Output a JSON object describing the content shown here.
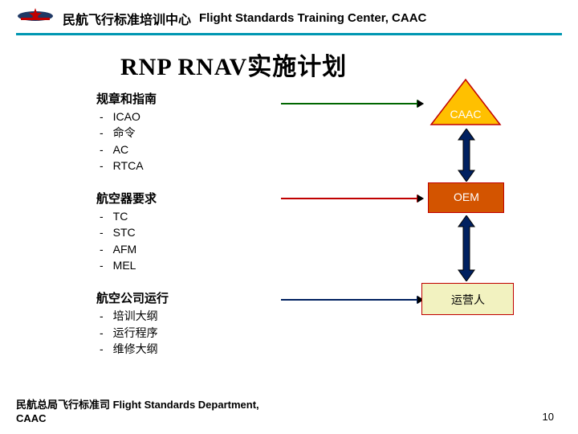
{
  "header": {
    "cn": "民航飞行标准培训中心",
    "en": "Flight Standards Training Center, CAAC",
    "line_color": "#0097B2"
  },
  "title": "RNP RNAV实施计划",
  "sections": [
    {
      "heading": "规章和指南",
      "items": [
        "ICAO",
        "命令",
        "AC",
        "RTCA"
      ],
      "arrow_color": "#006600",
      "target_label": "CAAC",
      "shape": {
        "type": "triangle",
        "fill": "#FFC000",
        "border": "#C00000",
        "label_color": "#ffffff",
        "label_bg": "none"
      }
    },
    {
      "heading": "航空器要求",
      "items": [
        "TC",
        "STC",
        "AFM",
        "MEL"
      ],
      "arrow_color": "#C00000",
      "target_label": "OEM",
      "shape": {
        "type": "rect",
        "fill": "#D35400",
        "border": "#C00000",
        "label_color": "#ffffff",
        "label_bg": "none"
      }
    },
    {
      "heading": "航空公司运行",
      "items": [
        "培训大纲",
        "运行程序",
        "维修大纲"
      ],
      "arrow_color": "#002060",
      "target_label": "运营人",
      "shape": {
        "type": "rect",
        "fill": "#F2F2C0",
        "border": "#C00000",
        "label_color": "#000000",
        "label_bg": "none"
      }
    }
  ],
  "connector": {
    "arrow_fill": "#002060",
    "arrow_border": "#000000"
  },
  "footer": {
    "line1": "民航总局飞行标准司   Flight Standards Department,",
    "line2": "CAAC"
  },
  "page_number": "10",
  "emblem_colors": {
    "star": "#C00000",
    "wing": "#1F3864",
    "bar": "#C00000"
  }
}
